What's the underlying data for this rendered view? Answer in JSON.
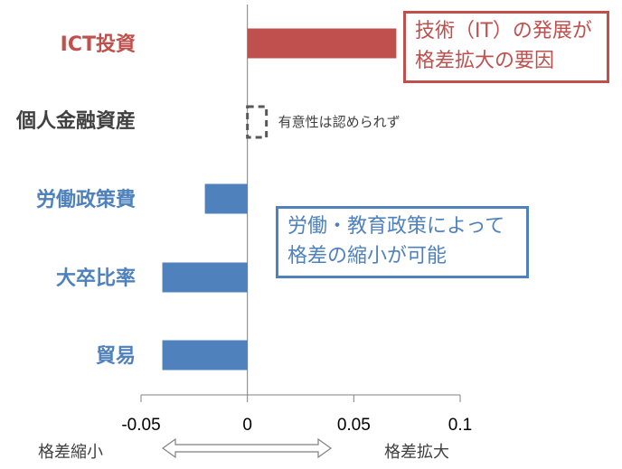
{
  "chart_data": {
    "type": "bar",
    "orientation": "horizontal",
    "categories": [
      "ICT投資",
      "個人金融資産",
      "労働政策費",
      "大卒比率",
      "貿易"
    ],
    "values": [
      0.07,
      null,
      -0.02,
      -0.04,
      -0.04
    ],
    "category_colors": [
      "#c0504d",
      "#404040",
      "#4f81bd",
      "#4f81bd",
      "#4f81bd"
    ],
    "bar_colors": [
      "#c0504d",
      null,
      "#4f81bd",
      "#4f81bd",
      "#4f81bd"
    ],
    "xlim": [
      -0.05,
      0.1
    ],
    "x_ticks": [
      -0.05,
      0,
      0.05,
      0.1
    ],
    "x_tick_labels": [
      "-0.05",
      "0",
      "0.05",
      "0.1"
    ],
    "insignificant_note": "有意性は認められず",
    "direction_labels": {
      "left": "格差縮小",
      "right": "格差拡大"
    },
    "grid": false
  },
  "callouts": {
    "red": {
      "line1": "技術（IT）の発展が",
      "line2": "格差拡大の要因"
    },
    "blue": {
      "line1": "労働・教育政策によって",
      "line2": "格差の縮小が可能"
    }
  },
  "colors": {
    "red": "#c0504d",
    "blue": "#4f81bd",
    "gray": "#404040",
    "axis": "#808080"
  }
}
